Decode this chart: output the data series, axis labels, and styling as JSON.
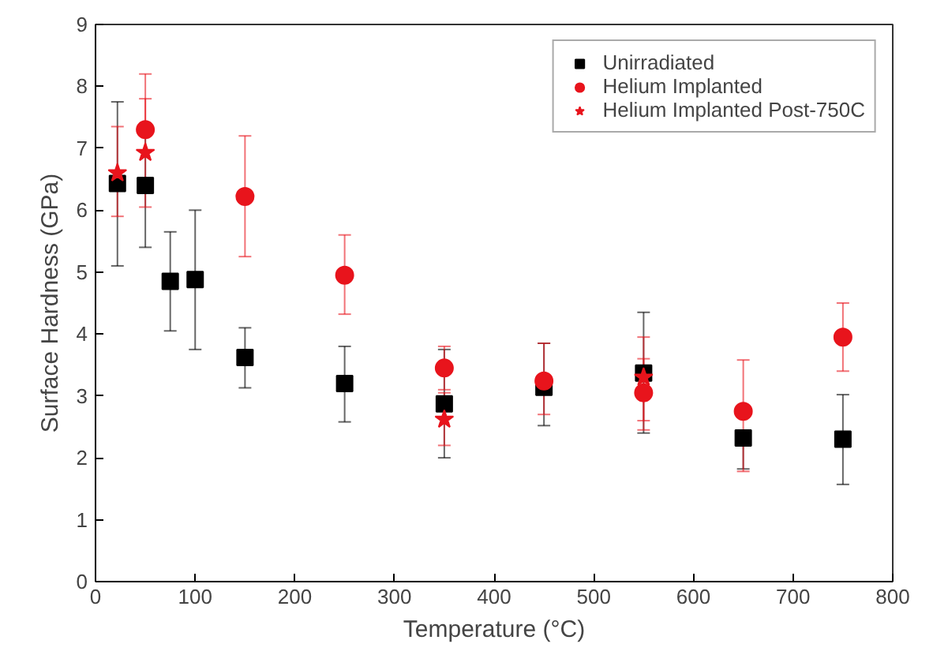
{
  "chart_data": {
    "type": "scatter",
    "xlabel": "Temperature (°C)",
    "ylabel": "Surface Hardness (GPa)",
    "xlim": [
      0,
      800
    ],
    "ylim": [
      0,
      9
    ],
    "xticks": [
      0,
      100,
      200,
      300,
      400,
      500,
      600,
      700,
      800
    ],
    "yticks": [
      0,
      1,
      2,
      3,
      4,
      5,
      6,
      7,
      8,
      9
    ],
    "grid": false,
    "legend": "top right",
    "series": [
      {
        "name": "Unirradiated",
        "color": "#000000",
        "marker": "square",
        "x": [
          22,
          50,
          75,
          100,
          150,
          250,
          350,
          450,
          550,
          650,
          750
        ],
        "values": [
          6.43,
          6.4,
          4.85,
          4.88,
          3.62,
          3.2,
          2.87,
          3.14,
          3.37,
          2.32,
          2.3
        ],
        "errors": [
          [
            5.1,
            7.75
          ],
          [
            5.4,
            7.4
          ],
          [
            4.05,
            5.65
          ],
          [
            3.75,
            6.0
          ],
          [
            3.13,
            4.1
          ],
          [
            2.58,
            3.8
          ],
          [
            2.0,
            3.75
          ],
          [
            2.52,
            3.85
          ],
          [
            2.4,
            4.35
          ],
          [
            1.82,
            2.32
          ],
          [
            1.57,
            3.02
          ]
        ]
      },
      {
        "name": "Helium Implanted",
        "color": "#e8141c",
        "marker": "circle",
        "x": [
          50,
          150,
          250,
          350,
          450,
          550,
          650,
          750
        ],
        "values": [
          7.3,
          6.22,
          4.95,
          3.45,
          3.24,
          3.05,
          2.75,
          3.95
        ],
        "errors": [
          [
            7.3,
            8.2
          ],
          [
            5.25,
            7.2
          ],
          [
            4.32,
            5.6
          ],
          [
            3.1,
            3.8
          ],
          [
            2.7,
            3.85
          ],
          [
            2.45,
            3.6
          ],
          [
            1.78,
            3.58
          ],
          [
            3.4,
            4.5
          ]
        ]
      },
      {
        "name": "Helium Implanted Post-750C",
        "color": "#e8141c",
        "marker": "star",
        "x": [
          22,
          50,
          350,
          550
        ],
        "values": [
          6.6,
          6.93,
          2.62,
          3.3
        ],
        "errors": [
          [
            5.9,
            7.35
          ],
          [
            6.05,
            7.8
          ],
          [
            2.2,
            3.05
          ],
          [
            2.6,
            3.95
          ]
        ]
      }
    ]
  }
}
